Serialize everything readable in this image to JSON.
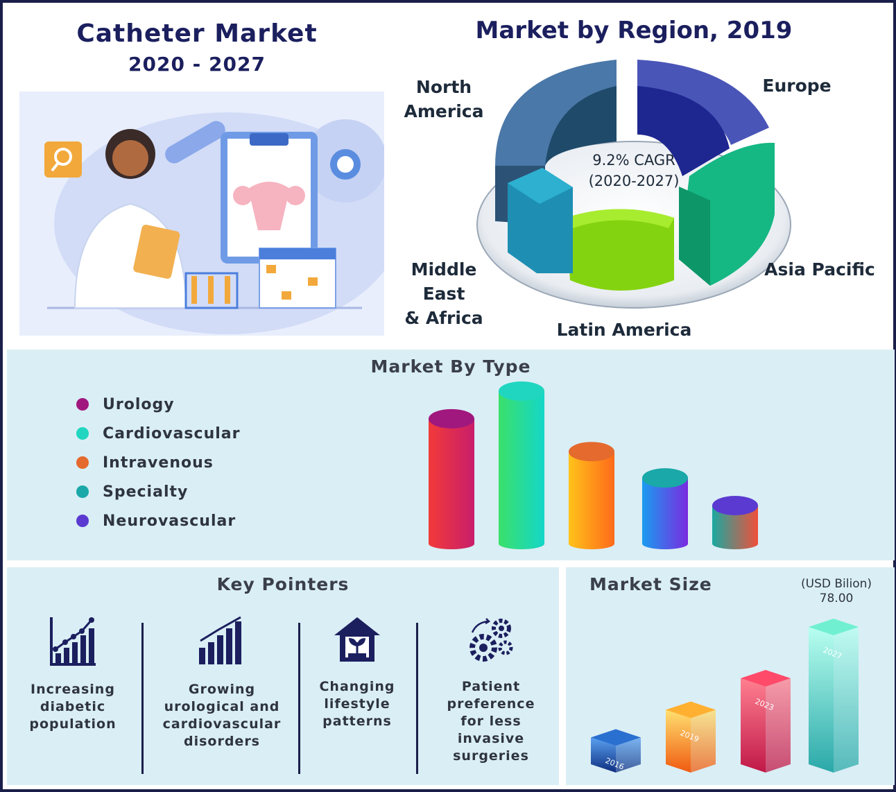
{
  "header": {
    "title": "Catheter Market",
    "years": "2020 - 2027"
  },
  "region": {
    "title": "Market by Region, 2019",
    "cagr_line1": "9.2% CAGR",
    "cagr_line2": "(2020-2027)",
    "labels": {
      "north_america_1": "North",
      "north_america_2": "America",
      "europe": "Europe",
      "asia_pacific": "Asia Pacific",
      "latin_america": "Latin America",
      "mea_1": "Middle East",
      "mea_2": "& Africa"
    }
  },
  "type_section": {
    "title": "Market By Type"
  },
  "key_pointers": {
    "title": "Key Pointers",
    "items": [
      {
        "line1": "Increasing",
        "line2": "diabetic",
        "line3": "population",
        "line4": "",
        "icon": "rising-bar-chart-icon"
      },
      {
        "line1": "Growing",
        "line2": "urological and",
        "line3": "cardiovascular",
        "line4": "disorders",
        "icon": "bar-chart-icon"
      },
      {
        "line1": "Changing",
        "line2": "lifestyle",
        "line3": "patterns",
        "line4": "",
        "icon": "house-plant-icon"
      },
      {
        "line1": "Patient",
        "line2": "preference",
        "line3": "for less",
        "line4": "invasive surgeries",
        "icon": "gears-icon"
      }
    ]
  },
  "market_size": {
    "title": "Market Size",
    "unit": "(USD Bilion)",
    "value": "78.00"
  },
  "chart_data": [
    {
      "type": "pie",
      "title": "Market by Region, 2019",
      "categories": [
        "North America",
        "Europe",
        "Asia Pacific",
        "Latin America",
        "Middle East & Africa"
      ],
      "values": [
        32,
        25,
        20,
        13,
        10
      ],
      "colors": [
        "#3f6a96",
        "#2a2f9a",
        "#17c08a",
        "#8fdc10",
        "#1e8fb3"
      ],
      "annotation": "9.2% CAGR (2020-2027)"
    },
    {
      "type": "bar",
      "title": "Market By Type",
      "categories": [
        "Urology",
        "Cardiovascular",
        "Intravenous",
        "Specialty",
        "Neurovascular"
      ],
      "values": [
        190,
        232,
        140,
        100,
        58
      ],
      "colors": [
        "#a0187e",
        "#20d6c0",
        "#e46a2e",
        "#1aa8a8",
        "#5a3ad0"
      ],
      "legend_position": "left"
    },
    {
      "type": "bar",
      "title": "Market Size",
      "categories": [
        "2016",
        "2019",
        "2023",
        "2027"
      ],
      "values": [
        22,
        36,
        52,
        78.0
      ],
      "ylabel": "(USD Bilion)",
      "annotation": "78.00",
      "colors": [
        "#1c56a8",
        "#f28a1a",
        "#e83e5c",
        "#3cc6b0"
      ]
    }
  ]
}
